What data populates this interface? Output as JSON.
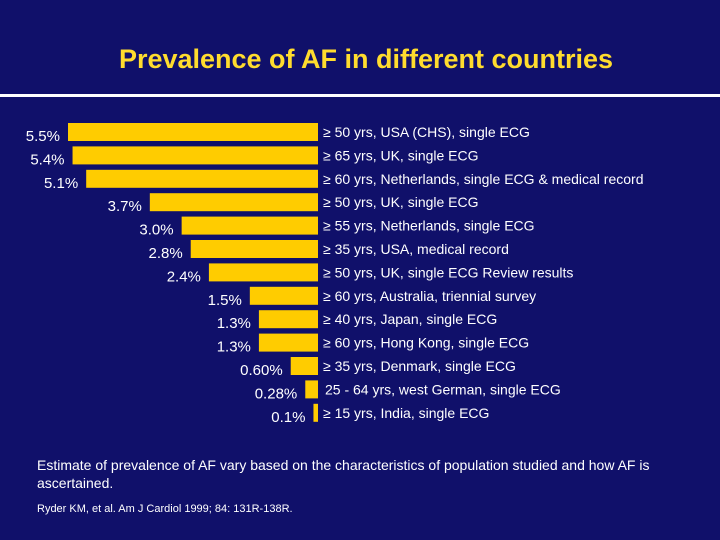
{
  "slide": {
    "title": "Prevalence of AF in different countries",
    "footnote": "Estimate of prevalence of AF vary based on the characteristics of population studied  and how AF is ascertained.",
    "citation": "Ryder KM, et al. Am J Cardiol 1999; 84: 131R-138R."
  },
  "colors": {
    "background": "#10106a",
    "title": "#ffdc2e",
    "bar": "#ffcc00",
    "text": "#ffffff"
  },
  "chart_data": {
    "type": "bar",
    "orientation": "horizontal",
    "title": "Prevalence of AF in different countries",
    "xlim": [
      0,
      5.5
    ],
    "grid": false,
    "legend": "none",
    "categories": [
      "≥ 50 yrs, USA (CHS), single ECG",
      "≥ 65 yrs, UK, single ECG",
      "≥ 60 yrs, Netherlands, single ECG & medical record",
      "≥ 50 yrs, UK, single ECG",
      "≥ 55 yrs, Netherlands, single ECG",
      "≥ 35 yrs, USA, medical record",
      "≥ 50 yrs, UK, single ECG Review results",
      "≥ 60 yrs, Australia, triennial survey",
      "≥ 40 yrs, Japan, single ECG",
      "≥ 60 yrs, Hong Kong, single ECG",
      "≥ 35 yrs, Denmark, single ECG",
      "25 - 64 yrs, west German, single ECG",
      "≥ 15 yrs, India, single ECG"
    ],
    "values": [
      5.5,
      5.4,
      5.1,
      3.7,
      3.0,
      2.8,
      2.4,
      1.5,
      1.3,
      1.3,
      0.6,
      0.28,
      0.1
    ],
    "value_labels": [
      "5.5%",
      "5.4%",
      "5.1%",
      "3.7%",
      "3.0%",
      "2.8%",
      "2.4%",
      "1.5%",
      "1.3%",
      "1.3%",
      "0.60%",
      "0.28%",
      "0.1%"
    ]
  }
}
